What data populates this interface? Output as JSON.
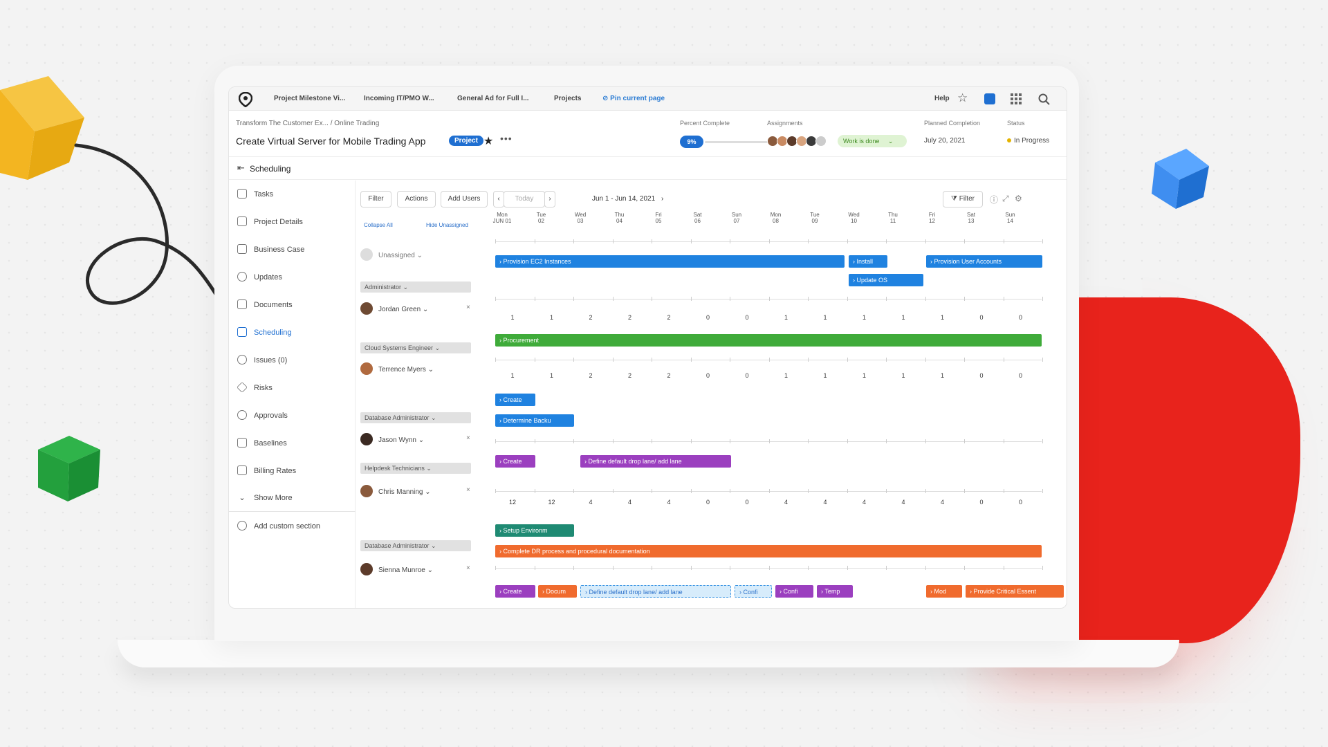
{
  "nav": {
    "tabs": [
      "Project Milestone Vi...",
      "Incoming IT/PMO W...",
      "General Ad for Full I...",
      "Projects"
    ],
    "pin": "Pin current page",
    "help": "Help"
  },
  "header": {
    "breadcrumb": "Transform The Customer Ex...  /  Online Trading",
    "title": "Create Virtual Server for Mobile Trading App",
    "badge": "Project",
    "percent_label": "Percent Complete",
    "percent_value": "9%",
    "assignments_label": "Assignments",
    "work_done": "Work is done",
    "planned_label": "Planned Completion",
    "planned_value": "July 20, 2021",
    "status_label": "Status",
    "status_value": "In Progress"
  },
  "section": "Scheduling",
  "sidebar": {
    "items": [
      "Tasks",
      "Project Details",
      "Business Case",
      "Updates",
      "Documents",
      "Scheduling",
      "Issues (0)",
      "Risks",
      "Approvals",
      "Baselines",
      "Billing Rates",
      "Show More"
    ],
    "add": "Add custom section"
  },
  "toolbar": {
    "filter": "Filter",
    "actions": "Actions",
    "add_users": "Add Users",
    "today": "Today",
    "range": "Jun 1 - Jun 14, 2021",
    "filter_right": "Filter"
  },
  "links": {
    "collapse": "Collapse All",
    "hide": "Hide Unassigned"
  },
  "days": [
    {
      "d": "Mon",
      "n": "JUN 01"
    },
    {
      "d": "Tue",
      "n": "02"
    },
    {
      "d": "Wed",
      "n": "03"
    },
    {
      "d": "Thu",
      "n": "04"
    },
    {
      "d": "Fri",
      "n": "05"
    },
    {
      "d": "Sat",
      "n": "06"
    },
    {
      "d": "Sun",
      "n": "07"
    },
    {
      "d": "Mon",
      "n": "08"
    },
    {
      "d": "Tue",
      "n": "09"
    },
    {
      "d": "Wed",
      "n": "10"
    },
    {
      "d": "Thu",
      "n": "11"
    },
    {
      "d": "Fri",
      "n": "12"
    },
    {
      "d": "Sat",
      "n": "13"
    },
    {
      "d": "Sun",
      "n": "14"
    }
  ],
  "people": {
    "unassigned": "Unassigned",
    "roles": [
      "Administrator",
      "Cloud Systems Engineer",
      "Database Administrator",
      "Helpdesk Technicians",
      "Database Administrator"
    ],
    "names": [
      "Jordan Green",
      "Terrence Myers",
      "Jason Wynn",
      "Chris Manning",
      "Sienna Munroe"
    ]
  },
  "hours": {
    "row1": [
      "1",
      "1",
      "2",
      "2",
      "2",
      "0",
      "0",
      "1",
      "1",
      "1",
      "1",
      "1",
      "0",
      "0"
    ],
    "row2": [
      "1",
      "1",
      "2",
      "2",
      "2",
      "0",
      "0",
      "1",
      "1",
      "1",
      "1",
      "1",
      "0",
      "0"
    ],
    "row3": [
      "12",
      "12",
      "4",
      "4",
      "4",
      "0",
      "0",
      "4",
      "4",
      "4",
      "4",
      "4",
      "0",
      "0"
    ]
  },
  "tasks": {
    "provision_ec2": "Provision EC2 Instances",
    "install": "Install",
    "provision_user": "Provision User Accounts",
    "update_os": "Update OS",
    "procurement": "Procurement",
    "create1": "Create",
    "determine": "Determine Backu",
    "create2": "Create",
    "define_drop": "Define default drop lane/ add lane",
    "setup": "Setup Environm",
    "complete_dr": "Complete DR process and procedural documentation",
    "b_create": "Create",
    "b_docum": "Docum",
    "b_define": "Define default drop lane/ add lane",
    "b_confi": "Confi",
    "b_confi2": "Confi",
    "b_temp": "Temp",
    "b_mod": "Mod",
    "b_provide": "Provide Critical Essent"
  }
}
